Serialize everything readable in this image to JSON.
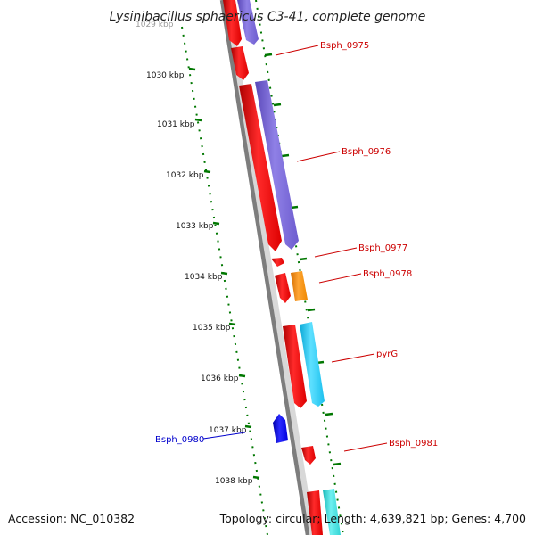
{
  "title": "Lysinibacillus sphaericus C3-41, complete genome",
  "footer": {
    "accession": "Accession: NC_010382",
    "topology": "Topology: circular; Length: 4,639,821 bp; Genes: 4,700"
  },
  "ruler": {
    "top_cut_label": "1029 kbp",
    "ticks": [
      "1030 kbp",
      "1031 kbp",
      "1032 kbp",
      "1033 kbp",
      "1034 kbp",
      "1035 kbp",
      "1036 kbp",
      "1037 kbp",
      "1038 kbp"
    ]
  },
  "colors": {
    "forward_cds": "#ff0000",
    "reverse_cds_label": "#0000cc",
    "purple_gene": "#7b68d8",
    "orange_gene": "#ff8c00",
    "cyan_gene": "#22c8f0",
    "teal_gene": "#33dddd",
    "blue_gene": "#0000ee",
    "backbone": "#808080",
    "tick_green": "#007700"
  },
  "genes": [
    {
      "name": "Bsph_0975",
      "color": "#cc0000"
    },
    {
      "name": "Bsph_0976",
      "color": "#cc0000"
    },
    {
      "name": "Bsph_0977",
      "color": "#cc0000"
    },
    {
      "name": "Bsph_0978",
      "color": "#cc0000"
    },
    {
      "name": "pyrG",
      "color": "#cc0000"
    },
    {
      "name": "Bsph_0981",
      "color": "#cc0000"
    },
    {
      "name": "Bsph_0980",
      "color": "#0000cc"
    }
  ]
}
